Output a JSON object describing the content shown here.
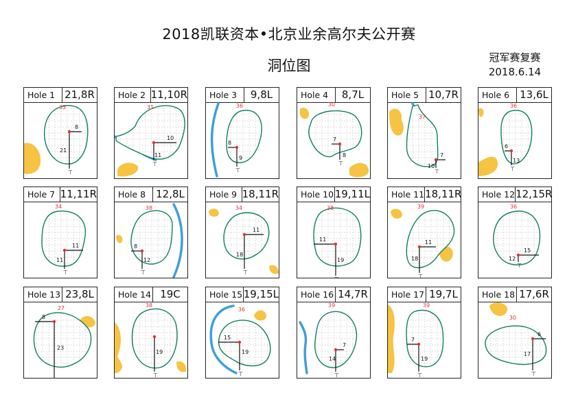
{
  "title": "2018凯联资本•北京业余高尔夫公开赛",
  "subtitle": "洞位图",
  "round_label": "冠军赛复赛",
  "date": "2018.6.14",
  "colors": {
    "green_outline": "#0f7f5c",
    "bunker": "#f6c342",
    "water": "#3d9fdc",
    "pin": "#e0322d",
    "grid": "#bdbdbd"
  },
  "holes": [
    {
      "label": "Hole 1",
      "position": "21,8R",
      "depth": "33",
      "front": "21",
      "side": "8",
      "side_dir": "R"
    },
    {
      "label": "Hole 2",
      "position": "11,10R",
      "depth": "31",
      "front": "11",
      "side": "10",
      "side_dir": "R"
    },
    {
      "label": "Hole 3",
      "position": "9,8L",
      "depth": "36",
      "front": "9",
      "side": "8",
      "side_dir": "L"
    },
    {
      "label": "Hole 4",
      "position": "8,7L",
      "depth": "30",
      "front": "8",
      "side": "7",
      "side_dir": "L"
    },
    {
      "label": "Hole 5",
      "position": "10,7R",
      "depth": "37",
      "front": "10",
      "side": "7",
      "side_dir": "R"
    },
    {
      "label": "Hole 6",
      "position": "13,6L",
      "depth": "36",
      "front": "13",
      "side": "6",
      "side_dir": "L"
    },
    {
      "label": "Hole 7",
      "position": "11,11R",
      "depth": "34",
      "front": "11",
      "side": "11",
      "side_dir": "R"
    },
    {
      "label": "Hole 8",
      "position": "12,8L",
      "depth": "38",
      "front": "12",
      "side": "8",
      "side_dir": "L"
    },
    {
      "label": "Hole 9",
      "position": "18,11R",
      "depth": "34",
      "front": "18",
      "side": "11",
      "side_dir": "R"
    },
    {
      "label": "Hole 10",
      "position": "19,11L",
      "depth": "38",
      "front": "19",
      "side": "11",
      "side_dir": "L"
    },
    {
      "label": "Hole 11",
      "position": "18,11R",
      "depth": "39",
      "front": "18",
      "side": "11",
      "side_dir": "R"
    },
    {
      "label": "Hole 12",
      "position": "12,15R",
      "depth": "36",
      "front": "12",
      "side": "15",
      "side_dir": "R"
    },
    {
      "label": "Hole 13",
      "position": "23,8L",
      "depth": "27",
      "front": "23",
      "side": "8",
      "side_dir": "L"
    },
    {
      "label": "Hole 14",
      "position": "19C",
      "depth": "38",
      "front": "19",
      "side": "",
      "side_dir": "C"
    },
    {
      "label": "Hole 15",
      "position": "19,15L",
      "depth": "36",
      "front": "19",
      "side": "15",
      "side_dir": "L"
    },
    {
      "label": "Hole 16",
      "position": "14,7R",
      "depth": "39",
      "front": "14",
      "side": "7",
      "side_dir": "R"
    },
    {
      "label": "Hole 17",
      "position": "19,7L",
      "depth": "39",
      "front": "19",
      "side": "7",
      "side_dir": "L"
    },
    {
      "label": "Hole 18",
      "position": "17,6R",
      "depth": "30",
      "front": "17",
      "side": "6",
      "side_dir": "R"
    }
  ]
}
